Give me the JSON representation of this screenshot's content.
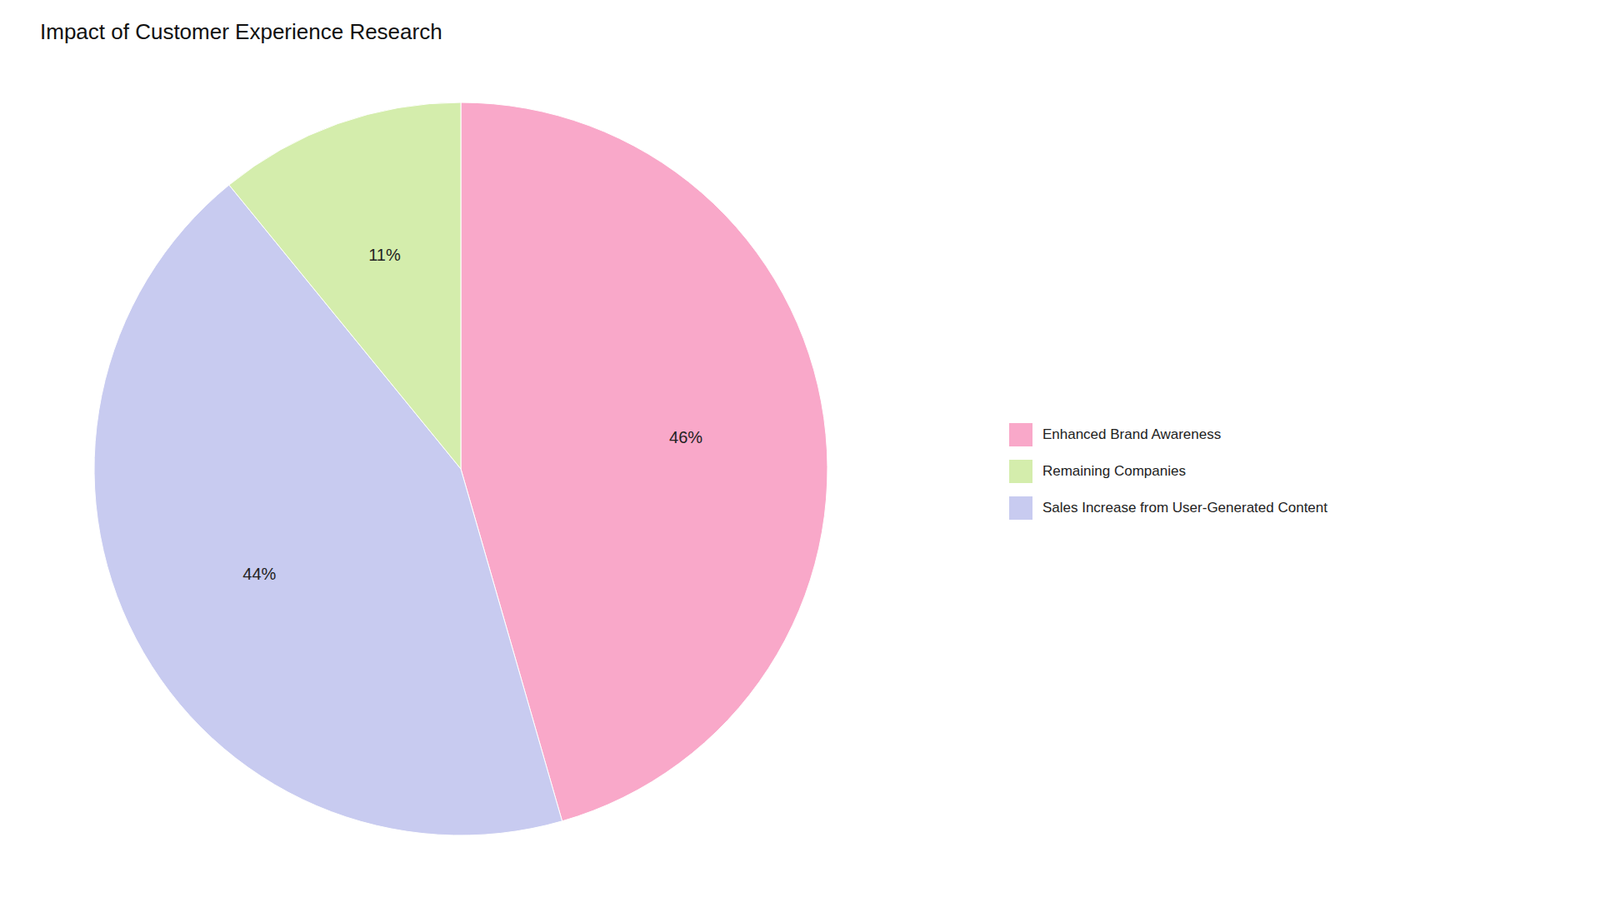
{
  "chart_data": {
    "type": "pie",
    "title": "Impact of Customer Experience Research",
    "categories": [
      "Enhanced Brand Awareness",
      "Sales Increase from User-Generated Content",
      "Remaining Companies"
    ],
    "values": [
      46,
      44,
      11
    ],
    "value_labels": [
      "46%",
      "44%",
      "11%"
    ],
    "colors": [
      "#F9A8C9",
      "#C8CBF0",
      "#D4EDAC"
    ],
    "data_labels": true,
    "legend": "right"
  }
}
